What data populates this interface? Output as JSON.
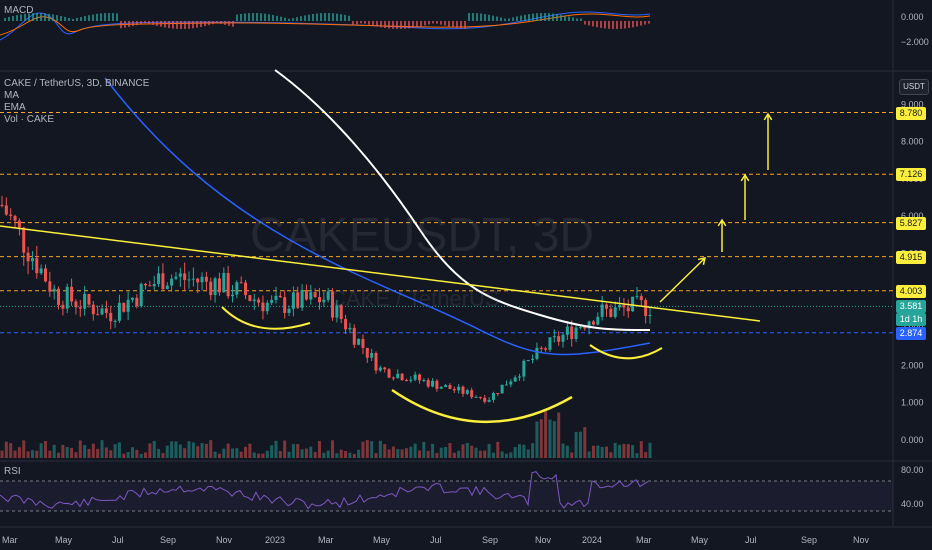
{
  "panes": {
    "macd_label": "MACD",
    "main_title": "CAKE / TetherUS, 3D, BINANCE",
    "indicators": [
      "MA",
      "EMA",
      "Vol · CAKE"
    ],
    "rsi_label": "RSI",
    "quote_currency": "USDT"
  },
  "watermark": {
    "symbol": "CAKEUSDT, 3D",
    "name": "CAKE / TetherUS"
  },
  "macd_axis": [
    "0.000",
    "−2.000"
  ],
  "price_axis": [
    "9.000",
    "8.000",
    "7.000",
    "6.000",
    "5.000",
    "4.000",
    "3.000",
    "2.000",
    "1.000",
    "0.000"
  ],
  "rsi_axis": [
    "80.00",
    "40.00"
  ],
  "price_tags": [
    {
      "label": "8.780",
      "value": 8.78,
      "bg": "#fbef3b",
      "fg": "#131722"
    },
    {
      "label": "7.126",
      "value": 7.126,
      "bg": "#fbef3b",
      "fg": "#131722"
    },
    {
      "label": "5.827",
      "value": 5.827,
      "bg": "#fbef3b",
      "fg": "#131722"
    },
    {
      "label": "4.915",
      "value": 4.915,
      "bg": "#fbef3b",
      "fg": "#131722"
    },
    {
      "label": "4.003",
      "value": 4.003,
      "bg": "#fbef3b",
      "fg": "#131722"
    }
  ],
  "current_price": {
    "label": "3.581",
    "sub": "1d 1h",
    "value": 3.581,
    "bg": "#26a69a"
  },
  "support_price": {
    "label": "2.874",
    "value": 2.874,
    "bg": "#2962ff"
  },
  "time_axis": [
    "Mar",
    "May",
    "Jul",
    "Sep",
    "Nov",
    "2023",
    "Mar",
    "May",
    "Jul",
    "Sep",
    "Nov",
    "2024",
    "Mar",
    "May",
    "Jul",
    "Sep",
    "Nov"
  ],
  "colors": {
    "background": "#131722",
    "up": "#26a69a",
    "down": "#ef5350",
    "ma_line": "#ffffff",
    "ema_line": "#2962ff",
    "trendline": "#fbef3b",
    "levels": "#f5a623",
    "rsi_line": "#7e57c2"
  },
  "chart_data": {
    "type": "line",
    "x": [
      "2022-03",
      "2022-05",
      "2022-07",
      "2022-09",
      "2022-11",
      "2023-01",
      "2023-03",
      "2023-05",
      "2023-07",
      "2023-09",
      "2023-11",
      "2024-01",
      "2024-03"
    ],
    "series": [
      {
        "values": [
          6.3,
          3.9,
          3.4,
          4.4,
          4.2,
          3.6,
          3.8,
          1.9,
          1.5,
          1.1,
          2.4,
          3.4,
          3.6
        ]
      }
    ],
    "ylim": [
      0,
      9.5
    ],
    "levels": [
      8.78,
      7.126,
      5.827,
      4.915,
      4.003,
      2.874
    ]
  }
}
